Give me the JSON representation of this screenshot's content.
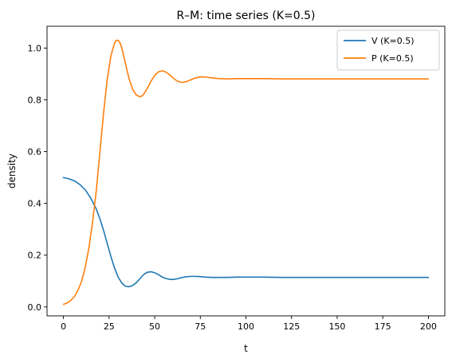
{
  "chart_data": {
    "type": "line",
    "title": "R–M: time series (K=0.5)",
    "xlabel": "t",
    "ylabel": "density",
    "xlim": [
      -9,
      209
    ],
    "ylim": [
      -0.0345,
      1.0843
    ],
    "xticks": [
      0,
      25,
      50,
      75,
      100,
      125,
      150,
      175,
      200
    ],
    "yticks": [
      0.0,
      0.2,
      0.4,
      0.6,
      0.8,
      1.0
    ],
    "xtick_labels": [
      "0",
      "25",
      "50",
      "75",
      "100",
      "125",
      "150",
      "175",
      "200"
    ],
    "ytick_labels": [
      "0.0",
      "0.2",
      "0.4",
      "0.6",
      "0.8",
      "1.0"
    ],
    "grid": false,
    "legend_position": "upper-right",
    "series": [
      {
        "name": "V (K=0.5)",
        "color": "#1f77b4",
        "x": [
          0,
          3,
          6,
          9,
          12,
          15,
          18,
          20,
          22,
          24,
          26,
          28,
          30,
          32,
          34,
          36,
          38,
          40,
          42,
          44,
          46,
          48,
          50,
          52,
          54,
          56,
          58,
          60,
          62,
          64,
          66,
          68,
          70,
          72,
          75,
          78,
          81,
          85,
          90,
          95,
          100,
          110,
          120,
          140,
          160,
          180,
          200
        ],
        "y": [
          0.5,
          0.495,
          0.487,
          0.473,
          0.452,
          0.42,
          0.378,
          0.34,
          0.295,
          0.245,
          0.195,
          0.15,
          0.115,
          0.092,
          0.08,
          0.078,
          0.083,
          0.094,
          0.11,
          0.125,
          0.134,
          0.136,
          0.132,
          0.125,
          0.116,
          0.11,
          0.107,
          0.106,
          0.108,
          0.112,
          0.115,
          0.117,
          0.118,
          0.118,
          0.117,
          0.115,
          0.114,
          0.114,
          0.114,
          0.115,
          0.115,
          0.115,
          0.114,
          0.114,
          0.114,
          0.114,
          0.114
        ]
      },
      {
        "name": "P (K=0.5)",
        "color": "#ff7f0e",
        "x": [
          0,
          2,
          4,
          6,
          8,
          10,
          12,
          14,
          16,
          18,
          20,
          22,
          24,
          26,
          28,
          29,
          30,
          31,
          32,
          34,
          36,
          38,
          40,
          42,
          43,
          44,
          46,
          48,
          50,
          52,
          54,
          56,
          58,
          60,
          62,
          64,
          66,
          68,
          70,
          72,
          75,
          78,
          81,
          85,
          90,
          95,
          100,
          110,
          120,
          140,
          160,
          180,
          200
        ],
        "y": [
          0.01,
          0.015,
          0.025,
          0.04,
          0.065,
          0.1,
          0.155,
          0.23,
          0.33,
          0.45,
          0.6,
          0.75,
          0.88,
          0.97,
          1.02,
          1.03,
          1.03,
          1.02,
          1.0,
          0.94,
          0.88,
          0.84,
          0.818,
          0.812,
          0.815,
          0.822,
          0.845,
          0.872,
          0.895,
          0.908,
          0.912,
          0.908,
          0.898,
          0.885,
          0.874,
          0.868,
          0.868,
          0.872,
          0.878,
          0.884,
          0.889,
          0.888,
          0.885,
          0.882,
          0.881,
          0.882,
          0.882,
          0.882,
          0.881,
          0.881,
          0.881,
          0.881,
          0.881
        ]
      }
    ]
  }
}
